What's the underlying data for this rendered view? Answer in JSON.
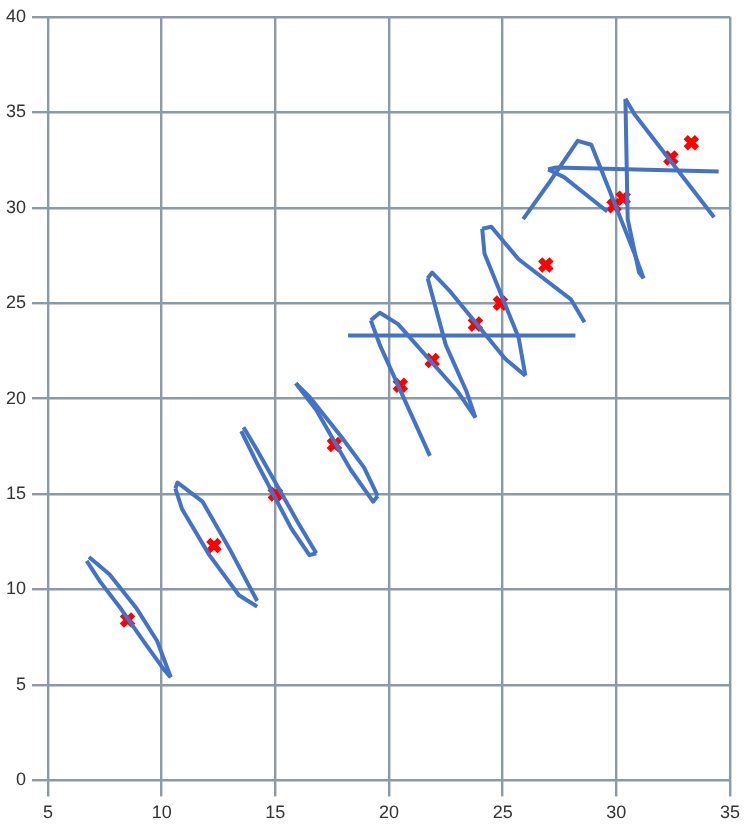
{
  "chart_data": {
    "type": "scatter",
    "xlim": [
      5,
      35
    ],
    "ylim": [
      0,
      40
    ],
    "xticks": [
      5,
      10,
      15,
      20,
      25,
      30,
      35
    ],
    "yticks": [
      0,
      5,
      10,
      15,
      20,
      25,
      30,
      35,
      40
    ],
    "grid": true,
    "legend": false,
    "series": [
      {
        "type": "line",
        "color": "#4472c4",
        "marker": "none",
        "line_style": "solid",
        "x": [
          6.8,
          7.7,
          8.9,
          9.8,
          10.4
        ],
        "values": [
          11.7,
          10.8,
          9.0,
          7.3,
          5.4
        ]
      },
      {
        "type": "line",
        "color": "#4472c4",
        "marker": "none",
        "line_style": "solid",
        "x": [
          6.7,
          7.3,
          8.2,
          9.2,
          10.1,
          10.4
        ],
        "values": [
          11.5,
          10.4,
          9.0,
          7.3,
          5.8,
          5.4
        ]
      },
      {
        "type": "line",
        "color": "#4472c4",
        "marker": "none",
        "line_style": "solid",
        "x": [
          10.6,
          10.7,
          11.8,
          13.0,
          14.2
        ],
        "values": [
          15.3,
          15.6,
          14.6,
          12.1,
          9.4
        ]
      },
      {
        "type": "line",
        "color": "#4472c4",
        "marker": "none",
        "line_style": "solid",
        "x": [
          10.6,
          10.9,
          12.1,
          13.4,
          14.2
        ],
        "values": [
          15.3,
          14.2,
          11.8,
          9.7,
          9.1
        ]
      },
      {
        "type": "line",
        "color": "#4472c4",
        "marker": "none",
        "line_style": "solid",
        "x": [
          13.6,
          14.2,
          16.0,
          16.8
        ],
        "values": [
          18.5,
          17.3,
          13.5,
          11.9
        ]
      },
      {
        "type": "line",
        "color": "#4472c4",
        "marker": "none",
        "line_style": "solid",
        "x": [
          13.5,
          14.2,
          15.7,
          16.5,
          16.8
        ],
        "values": [
          18.3,
          16.6,
          13.2,
          11.8,
          11.9
        ]
      },
      {
        "type": "line",
        "color": "#4472c4",
        "marker": "none",
        "line_style": "solid",
        "x": [
          15.9,
          16.8,
          18.3,
          19.3,
          19.5
        ],
        "values": [
          20.8,
          19.4,
          16.3,
          14.6,
          14.9
        ]
      },
      {
        "type": "line",
        "color": "#4472c4",
        "marker": "none",
        "line_style": "solid",
        "x": [
          15.9,
          16.5,
          17.9,
          18.9,
          19.5
        ],
        "values": [
          20.8,
          20.1,
          18.0,
          16.4,
          14.9
        ]
      },
      {
        "type": "line",
        "color": "#4472c4",
        "marker": "none",
        "line_style": "solid",
        "x": [
          19.2,
          19.6,
          21.8
        ],
        "values": [
          24.1,
          22.8,
          17.0
        ]
      },
      {
        "type": "line",
        "color": "#4472c4",
        "marker": "none",
        "line_style": "solid",
        "x": [
          19.2,
          19.6,
          20.4,
          23.0,
          23.8
        ],
        "values": [
          24.1,
          24.5,
          23.9,
          20.4,
          19.0
        ]
      },
      {
        "type": "line",
        "color": "#4472c4",
        "marker": "none",
        "line_style": "solid",
        "x": [
          21.7,
          22.5,
          23.4,
          23.8
        ],
        "values": [
          26.3,
          22.8,
          20.4,
          19.0
        ]
      },
      {
        "type": "line",
        "color": "#4472c4",
        "marker": "none",
        "line_style": "solid",
        "x": [
          21.7,
          21.9,
          22.7,
          25.1,
          26.0
        ],
        "values": [
          26.3,
          26.6,
          25.6,
          22.1,
          21.2
        ]
      },
      {
        "type": "line",
        "color": "#4472c4",
        "marker": "none",
        "line_style": "solid",
        "x": [
          24.1,
          24.2,
          25.7,
          26.0
        ],
        "values": [
          28.9,
          27.6,
          23.2,
          21.2
        ]
      },
      {
        "type": "line",
        "color": "#4472c4",
        "marker": "none",
        "line_style": "solid",
        "x": [
          24.1,
          24.5,
          25.7,
          28.0,
          28.6
        ],
        "values": [
          28.9,
          29.0,
          27.3,
          25.2,
          24.0
        ]
      },
      {
        "type": "line",
        "color": "#4472c4",
        "marker": "none",
        "line_style": "solid",
        "x": [
          18.2,
          28.2
        ],
        "values": [
          23.3,
          23.3
        ]
      },
      {
        "type": "line",
        "color": "#4472c4",
        "marker": "none",
        "line_style": "solid",
        "x": [
          25.9,
          27.1,
          28.3,
          28.9,
          30.8,
          31.2
        ],
        "values": [
          29.4,
          31.4,
          33.5,
          33.3,
          27.6,
          26.3
        ]
      },
      {
        "type": "line",
        "color": "#4472c4",
        "marker": "none",
        "line_style": "solid",
        "x": [
          30.4,
          30.5,
          31.0,
          31.2
        ],
        "values": [
          35.7,
          29.4,
          26.6,
          26.3
        ]
      },
      {
        "type": "line",
        "color": "#4472c4",
        "marker": "none",
        "line_style": "solid",
        "x": [
          30.4,
          30.8,
          34.3
        ],
        "values": [
          35.7,
          34.9,
          29.5
        ]
      },
      {
        "type": "line",
        "color": "#4472c4",
        "marker": "none",
        "line_style": "solid",
        "x": [
          27.0,
          27.3,
          34.5
        ],
        "values": [
          32.0,
          32.1,
          31.9
        ]
      },
      {
        "type": "line",
        "color": "#4472c4",
        "marker": "none",
        "line_style": "solid",
        "x": [
          27.0,
          27.7,
          29.6
        ],
        "values": [
          32.0,
          31.6,
          29.8
        ]
      },
      {
        "type": "scatter",
        "color": "#ff0000",
        "marker": "cross",
        "x": [
          8.5,
          12.3,
          15.0,
          17.6,
          20.5,
          21.9,
          23.8,
          24.9,
          26.9,
          29.9,
          30.3,
          32.4,
          33.3
        ],
        "values": [
          8.4,
          12.3,
          15.0,
          17.6,
          20.7,
          22.0,
          23.9,
          25.0,
          27.0,
          30.1,
          30.5,
          32.6,
          33.4
        ]
      }
    ]
  }
}
